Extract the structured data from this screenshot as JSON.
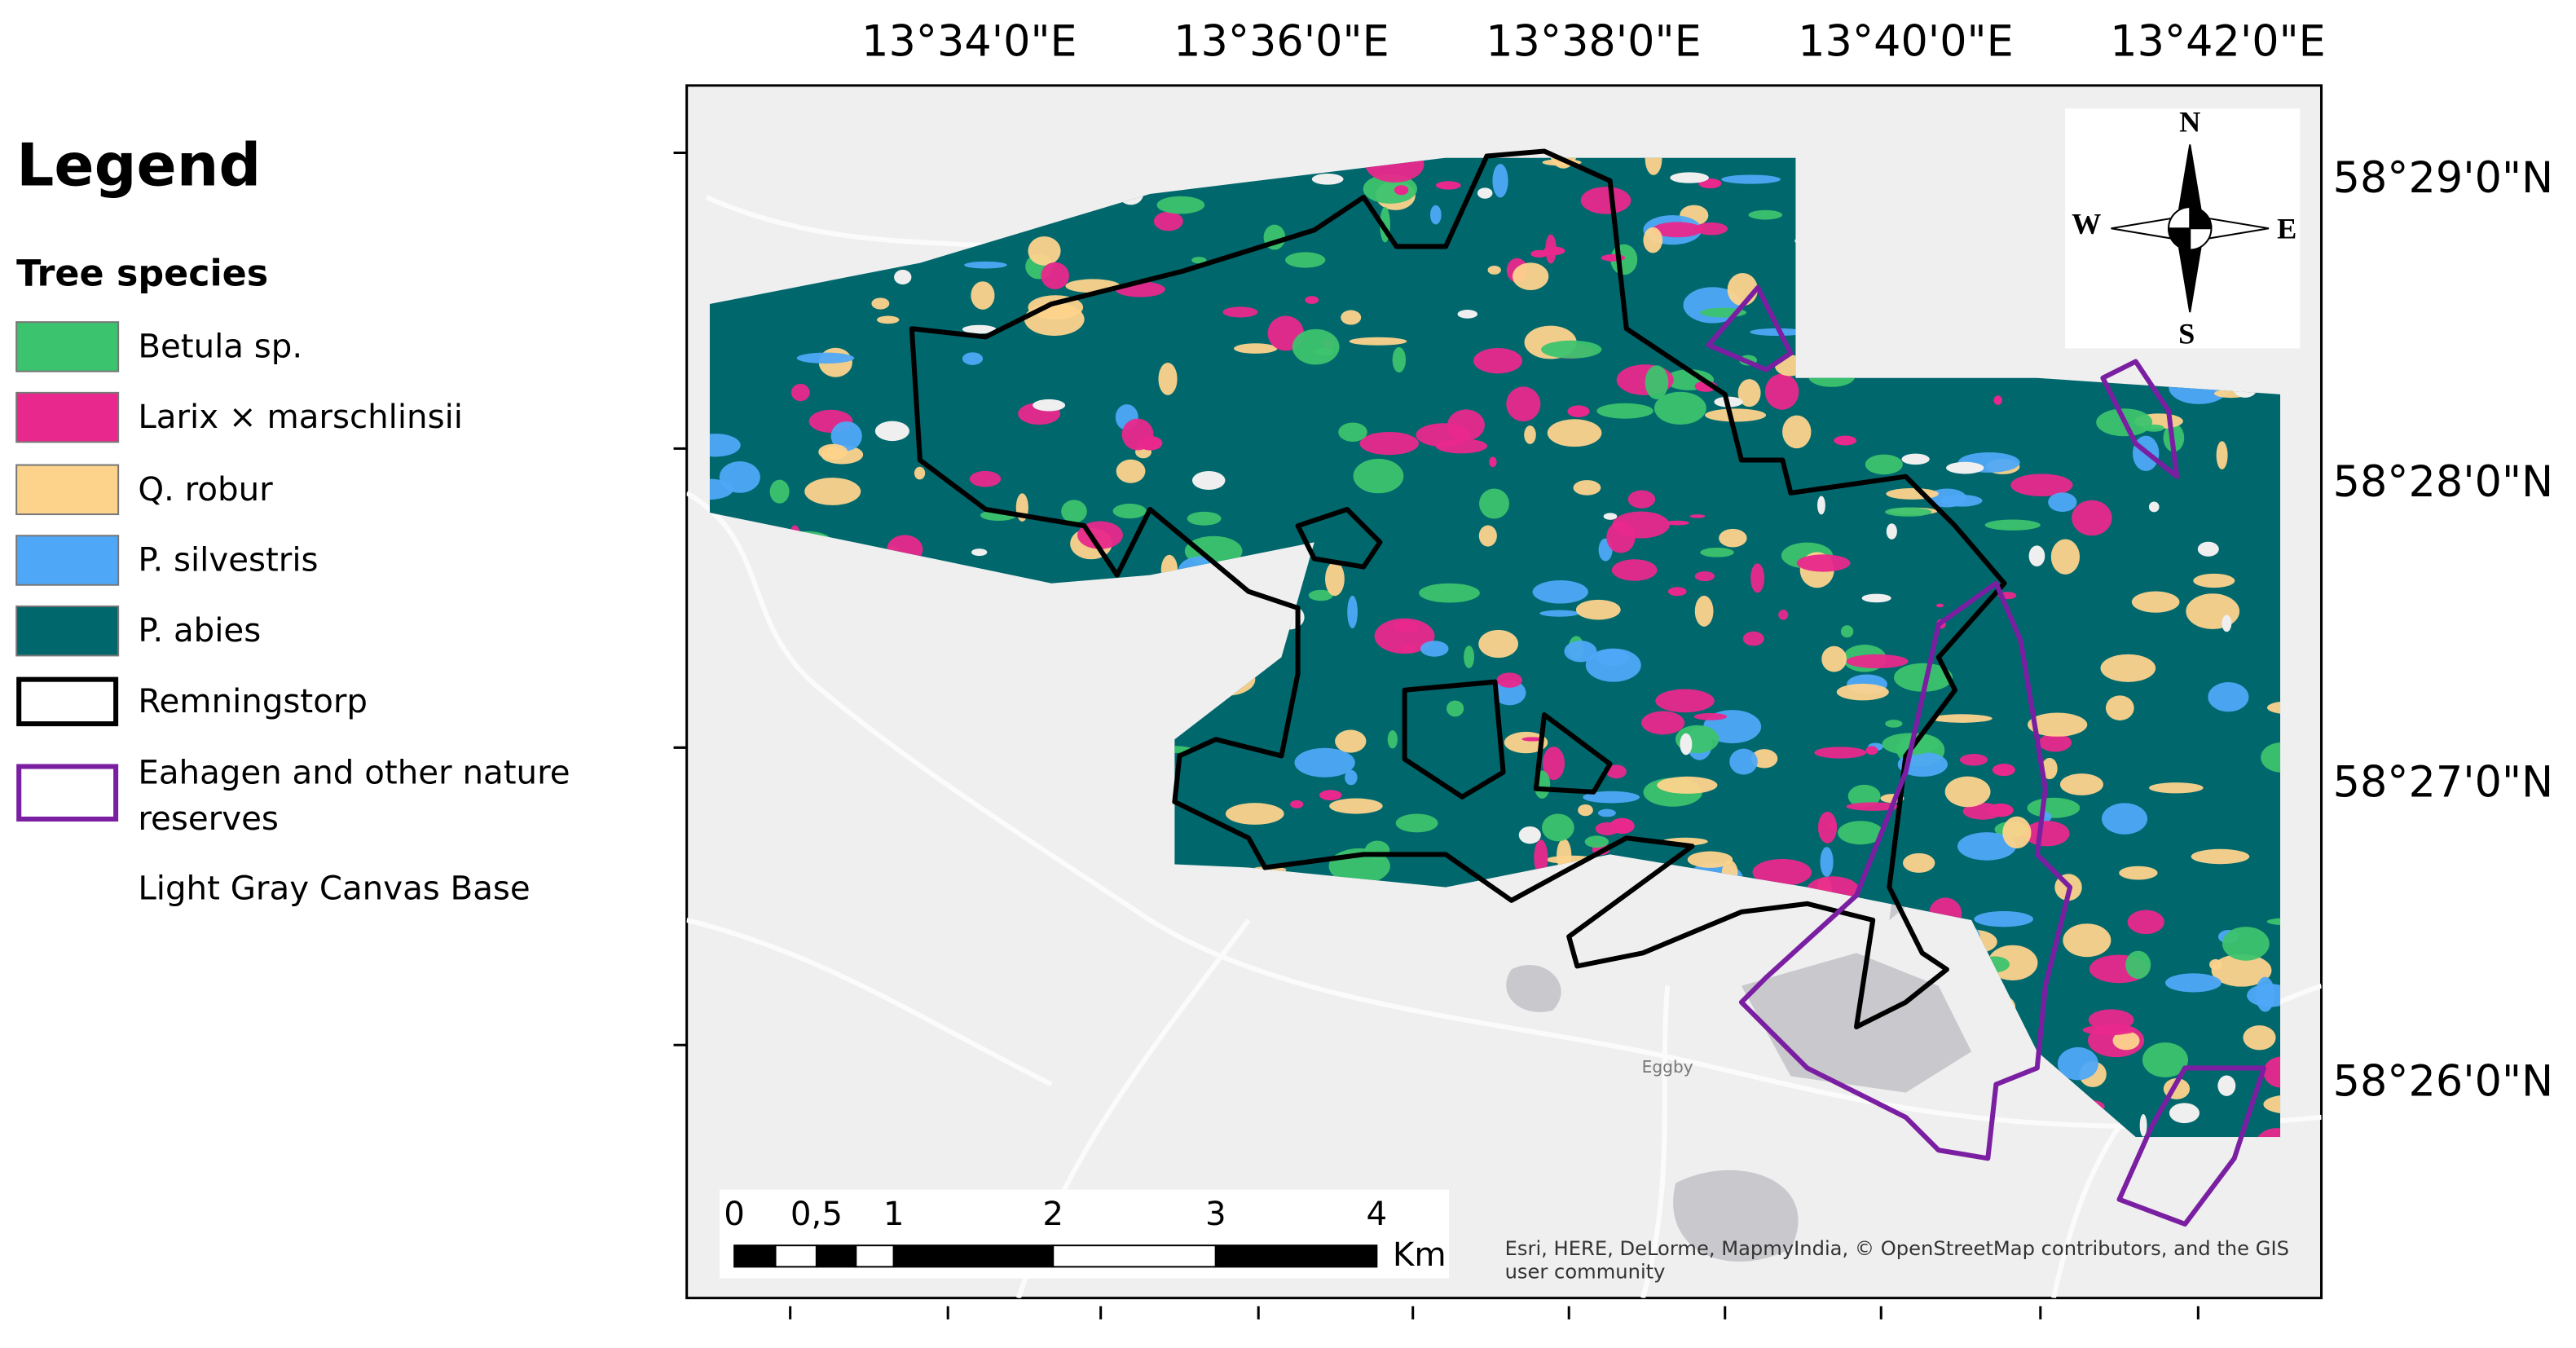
{
  "legend": {
    "title": "Legend",
    "group_title": "Tree species",
    "items": [
      {
        "label": "Betula sp.",
        "color": "#3cc36e"
      },
      {
        "label": "Larix × marschlinsii",
        "color": "#e8288c"
      },
      {
        "label": "Q. robur",
        "color": "#fdd38c"
      },
      {
        "label": "P. silvestris",
        "color": "#4fa8f7"
      },
      {
        "label": "P. abies",
        "color": "#00676c"
      },
      {
        "label": "Remningstorp",
        "outline": "#000000"
      },
      {
        "label": "Eahagen and other nature reserves",
        "outline": "#7b1fa2"
      }
    ],
    "basemap": "Light Gray Canvas Base"
  },
  "map": {
    "longitude_labels": [
      "13°34'0\"E",
      "13°36'0\"E",
      "13°38'0\"E",
      "13°40'0\"E",
      "13°42'0\"E"
    ],
    "latitude_labels": [
      "58°29'0\"N",
      "58°28'0\"N",
      "58°27'0\"N",
      "58°26'0\"N"
    ],
    "compass": {
      "n": "N",
      "s": "S",
      "w": "W",
      "e": "E"
    },
    "place_label": "Eggby",
    "attribution": "Esri, HERE, DeLorme, MapmyIndia, © OpenStreetMap contributors, and the GIS user community",
    "scale_bar": {
      "labels": [
        "0",
        "0,5",
        "1",
        "2",
        "3",
        "4"
      ],
      "unit": "Km"
    }
  }
}
